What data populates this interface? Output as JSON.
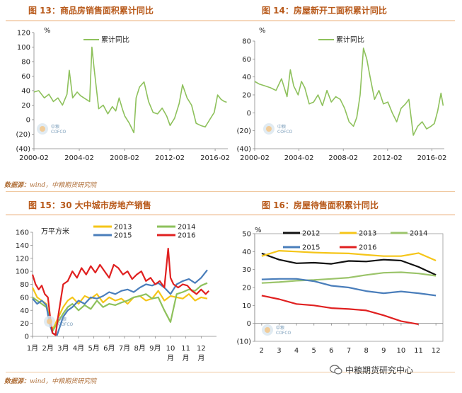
{
  "captions": {
    "fig13": "图 13：商品房销售面积累计同比",
    "fig14": "图 14：房屋新开工面积累计同比",
    "fig15": "图 15：30 大中城市房地产销售",
    "fig16": "图 16：房屋待售面积累计同比"
  },
  "source_line": {
    "label": "数据源：",
    "text": "wind，中粮期货研究院"
  },
  "wechat_label": "中粮期货研究中心",
  "watermark": {
    "logo_text": "中粮",
    "sub_text": "COFCO"
  },
  "colors": {
    "green": "#8ec15c",
    "yellow": "#f5c518",
    "blue": "#4a7ebb",
    "red": "#e02020",
    "black": "#111111",
    "green16": "#9bc46a",
    "caption": "#b8591a"
  },
  "chart_data": [
    {
      "id": "fig13",
      "type": "line",
      "unit": "%",
      "legend": [
        "累计同比"
      ],
      "ylim": [
        -40,
        120
      ],
      "yticks": [
        -40,
        -20,
        0,
        20,
        40,
        60,
        80,
        100,
        120
      ],
      "ytick_labels": [
        "(40)",
        "(20)",
        "0",
        "20",
        "40",
        "60",
        "80",
        "100",
        "120"
      ],
      "xlim": [
        2000.08,
        2017.2
      ],
      "xticks": [
        2000.08,
        2004.08,
        2008.08,
        2012.08,
        2016.08
      ],
      "xtick_labels": [
        "2000-02",
        "2004-02",
        "2008-02",
        "2012-02",
        "2016-02"
      ],
      "series": [
        {
          "name": "累计同比",
          "x": [
            2000.08,
            2000.5,
            2001.0,
            2001.4,
            2001.8,
            2002.2,
            2002.6,
            2003.0,
            2003.2,
            2003.5,
            2003.9,
            2004.2,
            2004.5,
            2005.0,
            2005.2,
            2005.4,
            2005.8,
            2006.2,
            2006.6,
            2007.0,
            2007.3,
            2007.6,
            2007.9,
            2008.1,
            2008.5,
            2008.9,
            2009.1,
            2009.4,
            2009.8,
            2010.2,
            2010.6,
            2011.0,
            2011.4,
            2011.8,
            2012.1,
            2012.5,
            2012.9,
            2013.2,
            2013.6,
            2014.0,
            2014.4,
            2014.8,
            2015.2,
            2015.6,
            2016.0,
            2016.3,
            2016.6,
            2016.9,
            2017.1
          ],
          "y": [
            38,
            40,
            30,
            35,
            25,
            30,
            20,
            35,
            68,
            30,
            38,
            33,
            30,
            25,
            100,
            70,
            15,
            20,
            8,
            18,
            12,
            30,
            14,
            5,
            -5,
            -18,
            30,
            45,
            52,
            25,
            10,
            8,
            16,
            5,
            -8,
            2,
            22,
            48,
            30,
            20,
            -5,
            -8,
            -10,
            0,
            10,
            34,
            28,
            25,
            24
          ]
        }
      ]
    },
    {
      "id": "fig14",
      "type": "line",
      "unit": "%",
      "legend": [
        "累计同比"
      ],
      "ylim": [
        -40,
        80
      ],
      "yticks": [
        -40,
        -20,
        0,
        20,
        40,
        60,
        80
      ],
      "ytick_labels": [
        "(40)",
        "(20)",
        "0",
        "20",
        "40",
        "60",
        "80"
      ],
      "xlim": [
        2000.08,
        2017.2
      ],
      "xticks": [
        2000.08,
        2004.08,
        2008.08,
        2012.08,
        2016.08
      ],
      "xtick_labels": [
        "2000-02",
        "2004-02",
        "2008-02",
        "2012-02",
        "2016-02"
      ],
      "series": [
        {
          "name": "累计同比",
          "x": [
            2000.08,
            2000.5,
            2001.0,
            2001.5,
            2002.0,
            2002.5,
            2003.0,
            2003.3,
            2003.6,
            2004.0,
            2004.3,
            2004.6,
            2005.0,
            2005.4,
            2005.8,
            2006.2,
            2006.6,
            2007.0,
            2007.4,
            2007.8,
            2008.2,
            2008.6,
            2009.0,
            2009.3,
            2009.6,
            2009.9,
            2010.2,
            2010.5,
            2010.9,
            2011.3,
            2011.7,
            2012.1,
            2012.5,
            2012.9,
            2013.3,
            2013.7,
            2014.0,
            2014.4,
            2014.8,
            2015.2,
            2015.6,
            2016.0,
            2016.3,
            2016.6,
            2016.9,
            2017.1
          ],
          "y": [
            35,
            32,
            30,
            28,
            25,
            38,
            18,
            48,
            30,
            20,
            35,
            28,
            10,
            12,
            20,
            8,
            25,
            12,
            18,
            15,
            5,
            -10,
            -15,
            -5,
            20,
            72,
            60,
            40,
            15,
            25,
            10,
            12,
            0,
            -10,
            5,
            10,
            15,
            -25,
            -15,
            -10,
            -18,
            -15,
            -12,
            2,
            22,
            8
          ]
        }
      ]
    },
    {
      "id": "fig15",
      "type": "line",
      "unit": "万平方米",
      "ylim": [
        0,
        160
      ],
      "yticks": [
        0,
        20,
        40,
        60,
        80,
        100,
        120,
        140,
        160
      ],
      "ytick_labels": [
        "0",
        "20",
        "40",
        "60",
        "80",
        "100",
        "120",
        "140",
        "160"
      ],
      "xlim": [
        1,
        13
      ],
      "xticks": [
        1,
        2,
        3,
        4,
        5,
        6,
        7,
        8,
        9,
        10,
        11,
        12
      ],
      "xtick_labels": [
        "1月",
        "2月",
        "3月",
        "4月",
        "5月",
        "6月",
        "7月",
        "8月",
        "9月",
        "10月",
        "11月",
        "12月"
      ],
      "series": [
        {
          "name": "2013",
          "x": [
            1,
            1.3,
            1.6,
            1.9,
            2.1,
            2.3,
            2.6,
            3.0,
            3.3,
            3.6,
            4.0,
            4.4,
            4.8,
            5.2,
            5.6,
            6.0,
            6.4,
            6.8,
            7.2,
            7.6,
            8.0,
            8.4,
            8.8,
            9.2,
            9.6,
            10.0,
            10.4,
            10.8,
            11.2,
            11.6,
            12.0,
            12.4
          ],
          "y": [
            75,
            60,
            55,
            50,
            30,
            10,
            25,
            45,
            55,
            60,
            50,
            62,
            58,
            65,
            52,
            60,
            55,
            58,
            50,
            60,
            62,
            55,
            58,
            70,
            55,
            62,
            60,
            58,
            65,
            55,
            60,
            58
          ]
        },
        {
          "name": "2014",
          "x": [
            1,
            1.3,
            1.6,
            1.9,
            2.1,
            2.3,
            2.6,
            3.0,
            3.3,
            3.6,
            4.0,
            4.4,
            4.8,
            5.2,
            5.6,
            6.0,
            6.4,
            6.8,
            7.2,
            7.6,
            8.0,
            8.4,
            8.8,
            9.2,
            9.6,
            10.0,
            10.4,
            10.8,
            11.2,
            11.6,
            12.0,
            12.4
          ],
          "y": [
            60,
            55,
            50,
            45,
            30,
            8,
            20,
            35,
            45,
            50,
            40,
            48,
            42,
            55,
            45,
            50,
            48,
            52,
            55,
            60,
            62,
            65,
            58,
            60,
            40,
            22,
            65,
            68,
            72,
            70,
            78,
            82
          ]
        },
        {
          "name": "2015",
          "x": [
            1,
            1.3,
            1.6,
            1.9,
            2.1,
            2.3,
            2.6,
            3.0,
            3.3,
            3.6,
            4.0,
            4.4,
            4.8,
            5.2,
            5.6,
            6.0,
            6.4,
            6.8,
            7.2,
            7.6,
            8.0,
            8.4,
            8.8,
            9.2,
            9.6,
            10.0,
            10.4,
            10.8,
            11.2,
            11.6,
            12.0,
            12.4
          ],
          "y": [
            58,
            50,
            55,
            48,
            20,
            5,
            2,
            30,
            40,
            45,
            55,
            50,
            60,
            58,
            62,
            68,
            65,
            70,
            72,
            68,
            75,
            80,
            78,
            82,
            75,
            65,
            80,
            85,
            88,
            82,
            90,
            102
          ]
        },
        {
          "name": "2016",
          "x": [
            1,
            1.2,
            1.4,
            1.6,
            1.8,
            2.0,
            2.15,
            2.3,
            2.5,
            2.7,
            3.0,
            3.3,
            3.6,
            3.9,
            4.2,
            4.5,
            4.8,
            5.1,
            5.4,
            5.7,
            6.0,
            6.3,
            6.6,
            6.9,
            7.2,
            7.5,
            7.8,
            8.1,
            8.4,
            8.7,
            9.0,
            9.3,
            9.6,
            9.85,
            10.0,
            10.2,
            10.5,
            10.8,
            11.1,
            11.4,
            11.7,
            12.0,
            12.3,
            12.5
          ],
          "y": [
            95,
            80,
            72,
            78,
            65,
            60,
            30,
            5,
            2,
            35,
            80,
            85,
            100,
            90,
            105,
            95,
            108,
            98,
            110,
            100,
            90,
            110,
            105,
            95,
            100,
            88,
            95,
            100,
            85,
            90,
            80,
            85,
            75,
            135,
            90,
            80,
            75,
            80,
            78,
            70,
            65,
            72,
            65,
            70
          ]
        }
      ]
    },
    {
      "id": "fig16",
      "type": "line",
      "unit": "%",
      "ylim": [
        -10,
        50
      ],
      "yticks": [
        -10,
        0,
        10,
        20,
        30,
        40,
        50
      ],
      "ytick_labels": [
        "(10)",
        "0",
        "10",
        "20",
        "30",
        "40",
        "50"
      ],
      "xlim": [
        1.6,
        12.4
      ],
      "xticks": [
        2,
        3,
        4,
        5,
        6,
        7,
        8,
        9,
        10,
        11,
        12
      ],
      "xtick_labels": [
        "2",
        "3",
        "4",
        "5",
        "6",
        "7",
        "8",
        "9",
        "10",
        "11",
        "12"
      ],
      "series": [
        {
          "name": "2012",
          "x": [
            2,
            3,
            4,
            5,
            6,
            7,
            8,
            9,
            10,
            11,
            12
          ],
          "y": [
            39,
            35.5,
            33.5,
            33.8,
            33.2,
            34.8,
            34.5,
            35.5,
            35,
            31.5,
            27
          ]
        },
        {
          "name": "2013",
          "x": [
            2,
            3,
            4,
            5,
            6,
            7,
            8,
            9,
            10,
            11,
            12
          ],
          "y": [
            37.5,
            40.5,
            40,
            39.5,
            39.2,
            39,
            38.2,
            37.5,
            37.5,
            39.2,
            35
          ]
        },
        {
          "name": "2014",
          "x": [
            2,
            3,
            4,
            5,
            6,
            7,
            8,
            9,
            10,
            11,
            12
          ],
          "y": [
            22.5,
            23,
            23.8,
            24.2,
            24.8,
            25.5,
            27,
            28.2,
            28.5,
            27.8,
            26.5
          ]
        },
        {
          "name": "2015",
          "x": [
            2,
            3,
            4,
            5,
            6,
            7,
            8,
            9,
            10,
            11,
            12
          ],
          "y": [
            24.5,
            24.8,
            24.8,
            23.5,
            21,
            20,
            18,
            16.8,
            17.8,
            16.8,
            15.5
          ]
        },
        {
          "name": "2016",
          "x": [
            2,
            3,
            4,
            5,
            6,
            7,
            8,
            9,
            10,
            11
          ],
          "y": [
            15.5,
            13.5,
            10.8,
            10,
            8.5,
            8,
            7.2,
            4.5,
            1.2,
            -0.5
          ]
        }
      ]
    }
  ]
}
